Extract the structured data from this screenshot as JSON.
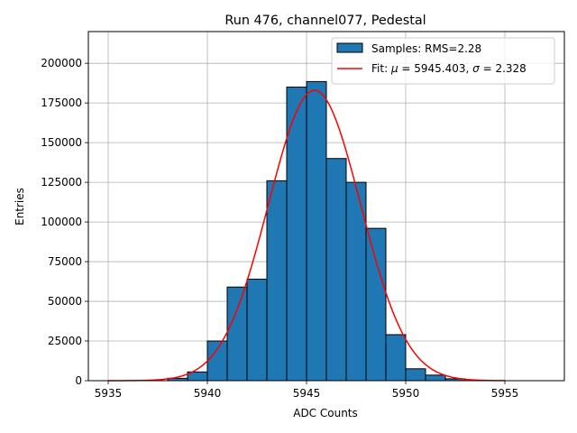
{
  "chart_data": {
    "type": "bar",
    "title": "Run 476, channel077, Pedestal",
    "xlabel": "ADC Counts",
    "ylabel": "Entries",
    "xlim": [
      5934,
      5958
    ],
    "ylim": [
      0,
      220000
    ],
    "xticks": [
      5935,
      5940,
      5945,
      5950,
      5955
    ],
    "yticks": [
      0,
      25000,
      50000,
      75000,
      100000,
      125000,
      150000,
      175000,
      200000
    ],
    "grid": true,
    "legend_position": "top-right",
    "legend": {
      "samples_label": "Samples: RMS=2.28",
      "fit_label_prefix": "Fit: ",
      "fit_mu_symbol": "μ",
      "fit_mu_value": " = 5945.403, ",
      "fit_sigma_symbol": "σ",
      "fit_sigma_value": " = 2.328"
    },
    "histogram": {
      "bin_width": 1,
      "bin_lefts": [
        5938,
        5939,
        5940,
        5941,
        5942,
        5943,
        5944,
        5945,
        5946,
        5947,
        5948,
        5949,
        5950,
        5951,
        5952
      ],
      "counts": [
        1500,
        5500,
        25000,
        59000,
        64000,
        126000,
        185000,
        188500,
        140000,
        125000,
        96000,
        29000,
        7500,
        3500,
        1200
      ],
      "color": "#1f77b4",
      "edge_color": "#000000"
    },
    "fit": {
      "mu": 5945.403,
      "sigma": 2.328,
      "amplitude": 183000,
      "x_range": [
        5935,
        5955
      ],
      "color": "#ff0000"
    }
  }
}
